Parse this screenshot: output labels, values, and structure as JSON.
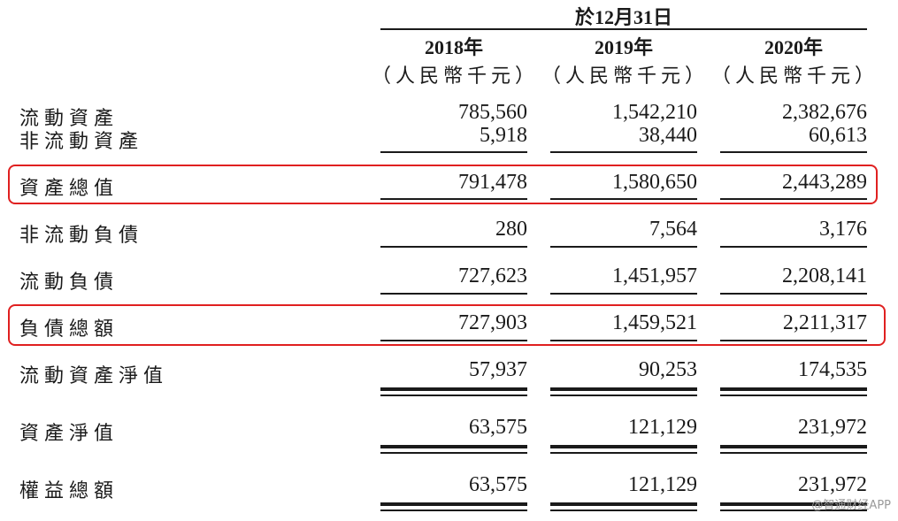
{
  "header": {
    "period": "於12月31日",
    "years": [
      "2018年",
      "2019年",
      "2020年"
    ],
    "units": [
      "（人民幣千元）",
      "（人民幣千元）",
      "（人民幣千元）"
    ]
  },
  "rows": [
    {
      "label": "流動資產",
      "values": [
        "785,560",
        "1,542,210",
        "2,382,676"
      ]
    },
    {
      "label": "非流動資產",
      "values": [
        "5,918",
        "38,440",
        "60,613"
      ]
    },
    {
      "label": "資產總值",
      "values": [
        "791,478",
        "1,580,650",
        "2,443,289"
      ],
      "highlighted": true
    },
    {
      "label": "非流動負債",
      "values": [
        "280",
        "7,564",
        "3,176"
      ]
    },
    {
      "label": "流動負債",
      "values": [
        "727,623",
        "1,451,957",
        "2,208,141"
      ]
    },
    {
      "label": "負債總額",
      "values": [
        "727,903",
        "1,459,521",
        "2,211,317"
      ],
      "highlighted": true
    },
    {
      "label": "流動資產淨值",
      "values": [
        "57,937",
        "90,253",
        "174,535"
      ]
    },
    {
      "label": "資產淨值",
      "values": [
        "63,575",
        "121,129",
        "231,972"
      ]
    },
    {
      "label": "權益總額",
      "values": [
        "63,575",
        "121,129",
        "231,972"
      ]
    }
  ],
  "watermark": "@智通财经APP",
  "highlight_color": "#e02020"
}
